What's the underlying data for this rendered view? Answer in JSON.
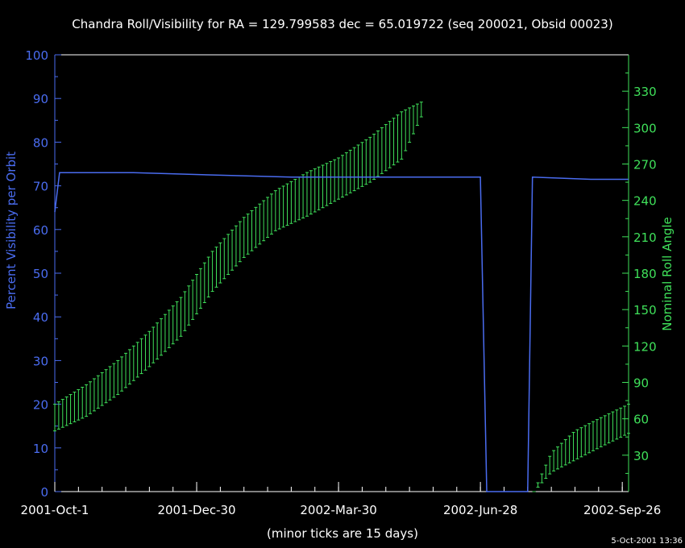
{
  "chart_data": {
    "type": "line",
    "title": "Chandra Roll/Visibility for RA = 129.799583 dec = 65.019722 (seq 200021, Obsid 00023)",
    "xlabel": "(minor ticks are 15 days)",
    "ylabel": "Percent Visibility per Orbit",
    "y2label": "Nominal Roll Angle",
    "timestamp": "5-Oct-2001 13:36",
    "x_start": "2001-10-01",
    "x_end": "2002-09-30",
    "xlim_days": [
      0,
      364
    ],
    "ylim": [
      0,
      100
    ],
    "y2lim": [
      0,
      360
    ],
    "x_ticks": [
      {
        "label": "2001-Oct-1",
        "day": 0
      },
      {
        "label": "2001-Dec-30",
        "day": 90
      },
      {
        "label": "2002-Mar-30",
        "day": 180
      },
      {
        "label": "2002-Jun-28",
        "day": 270
      },
      {
        "label": "2002-Sep-26",
        "day": 360
      }
    ],
    "y_ticks": [
      0,
      10,
      20,
      30,
      40,
      50,
      60,
      70,
      80,
      90,
      100
    ],
    "y2_ticks": [
      30,
      60,
      90,
      120,
      150,
      180,
      210,
      240,
      270,
      300,
      330
    ],
    "colors": {
      "visibility": "#4a6cf0",
      "roll": "#3fe05a",
      "axis": "#ffffff",
      "text": "#ffffff"
    },
    "series": [
      {
        "name": "Percent Visibility per Orbit",
        "axis": "left",
        "points": [
          [
            0,
            64
          ],
          [
            3,
            73
          ],
          [
            50,
            73
          ],
          [
            100,
            72.5
          ],
          [
            150,
            72
          ],
          [
            200,
            72
          ],
          [
            270,
            72
          ],
          [
            274,
            0
          ],
          [
            300,
            0
          ],
          [
            303,
            72
          ],
          [
            340,
            71.5
          ],
          [
            364,
            71.5
          ]
        ]
      },
      {
        "name": "Nominal Roll Angle",
        "axis": "right",
        "range_points": [
          [
            0,
            50,
            72
          ],
          [
            20,
            62,
            88
          ],
          [
            40,
            80,
            108
          ],
          [
            60,
            103,
            132
          ],
          [
            80,
            128,
            160
          ],
          [
            100,
            165,
            198
          ],
          [
            120,
            193,
            226
          ],
          [
            140,
            215,
            248
          ],
          [
            160,
            227,
            263
          ],
          [
            180,
            241,
            275
          ],
          [
            200,
            255,
            292
          ],
          [
            220,
            274,
            313
          ],
          [
            234,
            313,
            322
          ],
          [
            304,
            0,
            0
          ],
          [
            315,
            16,
            32
          ],
          [
            330,
            26,
            50
          ],
          [
            345,
            36,
            60
          ],
          [
            364,
            48,
            72
          ]
        ]
      }
    ]
  }
}
